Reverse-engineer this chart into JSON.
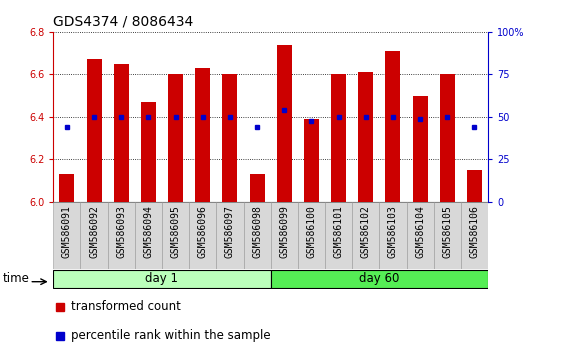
{
  "title": "GDS4374 / 8086434",
  "samples": [
    "GSM586091",
    "GSM586092",
    "GSM586093",
    "GSM586094",
    "GSM586095",
    "GSM586096",
    "GSM586097",
    "GSM586098",
    "GSM586099",
    "GSM586100",
    "GSM586101",
    "GSM586102",
    "GSM586103",
    "GSM586104",
    "GSM586105",
    "GSM586106"
  ],
  "bar_heights": [
    6.13,
    6.67,
    6.65,
    6.47,
    6.6,
    6.63,
    6.6,
    6.13,
    6.74,
    6.39,
    6.6,
    6.61,
    6.71,
    6.5,
    6.6,
    6.15
  ],
  "percentile_values": [
    6.35,
    6.4,
    6.4,
    6.4,
    6.4,
    6.4,
    6.4,
    6.35,
    6.43,
    6.38,
    6.4,
    6.4,
    6.4,
    6.39,
    6.4,
    6.35
  ],
  "ylim": [
    6.0,
    6.8
  ],
  "yticks": [
    6.0,
    6.2,
    6.4,
    6.6,
    6.8
  ],
  "right_yticks": [
    0,
    25,
    50,
    75,
    100
  ],
  "right_ytick_labels": [
    "0",
    "25",
    "50",
    "75",
    "100%"
  ],
  "bar_color": "#cc0000",
  "dot_color": "#0000cc",
  "bar_width": 0.55,
  "day1_label": "day 1",
  "day60_label": "day 60",
  "day1_color": "#bbffbb",
  "day60_color": "#55ee55",
  "left_tick_color": "#cc0000",
  "right_tick_color": "#0000cc",
  "legend_bar_label": "transformed count",
  "legend_dot_label": "percentile rank within the sample",
  "title_fontsize": 10,
  "tick_fontsize": 7,
  "label_fontsize": 8.5,
  "sample_fontsize": 7
}
